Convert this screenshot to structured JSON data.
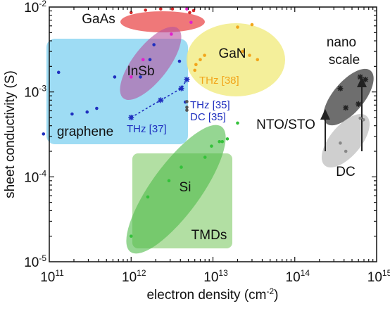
{
  "chart_data": {
    "type": "scatter",
    "xlabel_main": "electron density (cm",
    "xlabel_sup": "-2",
    "xlabel_end": ")",
    "ylabel": "sheet conductivity (S)",
    "xscale": "log",
    "yscale": "log",
    "xlim": [
      100000000000.0,
      1000000000000000.0
    ],
    "ylim": [
      1e-05,
      0.01
    ],
    "x_ticks": [
      {
        "base": "10",
        "exp": "11"
      },
      {
        "base": "10",
        "exp": "12"
      },
      {
        "base": "10",
        "exp": "13"
      },
      {
        "base": "10",
        "exp": "14"
      },
      {
        "base": "10",
        "exp": "15"
      }
    ],
    "y_ticks": [
      {
        "base": "10",
        "exp": "-5"
      },
      {
        "base": "10",
        "exp": "-4"
      },
      {
        "base": "10",
        "exp": "-3"
      },
      {
        "base": "10",
        "exp": "-2"
      }
    ],
    "regions": [
      {
        "label": "GaAs",
        "color": "#e8383a"
      },
      {
        "label": "InSb",
        "color": "#b5519f"
      },
      {
        "label": "GaN",
        "color": "#f2ec88"
      },
      {
        "label": "graphene",
        "color": "#62c7ee"
      },
      {
        "label": "Si",
        "color": "#4fba4a"
      },
      {
        "label": "TMDs",
        "color": "#92d17c"
      },
      {
        "label": "nano",
        "color": "#333333"
      },
      {
        "label": "scale",
        "color": "#333333"
      },
      {
        "label": "NTO/STO",
        "color": "#333333"
      },
      {
        "label": "DC",
        "color": "#333333"
      }
    ],
    "annotations": [
      {
        "text": "THz [38]",
        "color": "#f2a51a"
      },
      {
        "text": "THz [35]",
        "color": "#1f2fbf"
      },
      {
        "text": "DC    [35]",
        "color": "#1f2fbf"
      },
      {
        "text": "THz [37]",
        "color": "#1f2fbf"
      }
    ],
    "series": [
      {
        "name": "graphene",
        "color": "#1f2fbf",
        "x": [
          85000000000.0,
          130000000000.0,
          190000000000.0,
          290000000000.0,
          380000000000.0,
          1300000000000.0,
          1700000000000.0,
          1900000000000.0,
          3900000000000.0,
          4600000000000.0,
          630000000000.0
        ],
        "y": [
          0.00032,
          0.0017,
          0.00055,
          0.00058,
          0.00064,
          0.0015,
          0.0024,
          0.0036,
          0.0023,
          0.00076,
          0.0015
        ]
      },
      {
        "name": "THz [37]",
        "color": "#1f2fbf",
        "x": [
          1000000000000.0,
          2300000000000.0,
          4100000000000.0,
          4800000000000.0
        ],
        "y": [
          0.0005,
          0.0008,
          0.0011,
          0.0014
        ]
      },
      {
        "name": "DC [35]",
        "color": "#555555",
        "x": [
          4800000000000.0,
          4800000000000.0,
          4800000000000.0
        ],
        "y": [
          0.00077,
          0.00066,
          0.00061
        ]
      },
      {
        "name": "GaAs",
        "color": "#d42a2a",
        "x": [
          1000000000000.0,
          1500000000000.0,
          2300000000000.0,
          3200000000000.0,
          5200000000000.0,
          5800000000000.0
        ],
        "y": [
          0.0086,
          0.0092,
          0.0095,
          0.0095,
          0.0086,
          0.0091
        ]
      },
      {
        "name": "InSb",
        "color": "#e21fcd",
        "x": [
          1000000000000.0,
          1400000000000.0,
          3100000000000.0,
          4800000000000.0,
          5400000000000.0
        ],
        "y": [
          0.0015,
          0.0024,
          0.0048,
          0.0095,
          0.0066
        ]
      },
      {
        "name": "GaN",
        "color": "#f2a51a",
        "x": [
          6000000000000.0,
          6200000000000.0,
          7000000000000.0,
          7900000000000.0,
          23000000000000.0,
          28000000000000.0,
          30000000000000.0,
          35000000000000.0,
          20000000000000.0
        ],
        "y": [
          0.0018,
          0.0021,
          0.0024,
          0.0027,
          0.003,
          0.0027,
          0.0062,
          0.0024,
          0.0058
        ]
      },
      {
        "name": "Si",
        "color": "#34c13a",
        "x": [
          1000000000000.0,
          1600000000000.0,
          2900000000000.0,
          4100000000000.0,
          8000000000000.0,
          9600000000000.0,
          12000000000000.0,
          13000000000000.0,
          15000000000000.0,
          20000000000000.0
        ],
        "y": [
          2e-05,
          5.8e-05,
          9e-05,
          0.00013,
          0.00017,
          0.00023,
          0.00026,
          0.00026,
          0.00028,
          0.00043
        ]
      },
      {
        "name": "NTO/STO nano",
        "color": "#222222",
        "x": [
          360000000000000.0,
          420000000000000.0,
          630000000000000.0,
          730000000000000.0,
          600000000000000.0
        ],
        "y": [
          0.0011,
          0.00065,
          0.0015,
          0.0014,
          0.00072
        ]
      },
      {
        "name": "NTO/STO DC",
        "color": "#888888",
        "x": [
          360000000000000.0,
          420000000000000.0,
          630000000000000.0,
          690000000000000.0
        ],
        "y": [
          0.00025,
          0.0002,
          0.00049,
          0.00047
        ]
      }
    ]
  }
}
